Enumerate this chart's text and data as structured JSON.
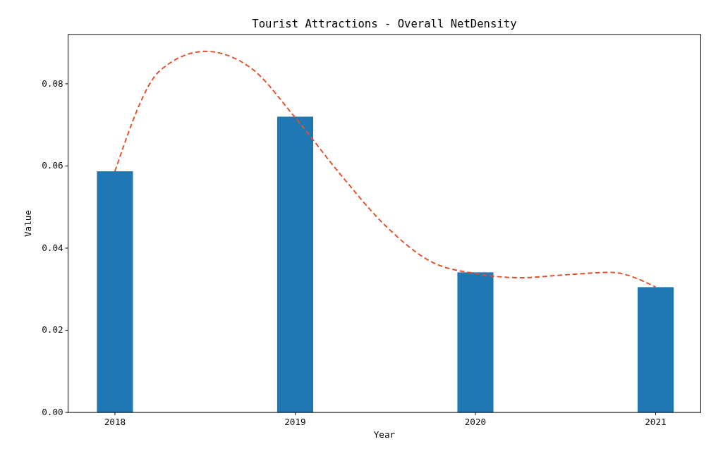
{
  "chart_data": {
    "type": "bar",
    "title": "Tourist Attractions - Overall NetDensity",
    "xlabel": "Year",
    "ylabel": "Value",
    "xlim": [
      2017.74,
      2021.25
    ],
    "xticks": [
      2018,
      2019,
      2020,
      2021
    ],
    "ylim": [
      0,
      0.092
    ],
    "yticks": [
      {
        "value": 0,
        "label": "0.00"
      },
      {
        "value": 0.02,
        "label": "0.02"
      },
      {
        "value": 0.04,
        "label": "0.04"
      },
      {
        "value": 0.06,
        "label": "0.06"
      },
      {
        "value": 0.08,
        "label": "0.08"
      }
    ],
    "grid": false,
    "series": [
      {
        "color": "#1f77b4",
        "x": [
          2018,
          2019,
          2020,
          2021
        ],
        "values": [
          0.0587,
          0.072,
          0.0341,
          0.0305
        ]
      },
      {
        "type": "line",
        "color": "#e4502a",
        "line_style": "dashed",
        "marker": "none",
        "x": [
          2018,
          2018.25,
          2018.5,
          2018.75,
          2019,
          2019.25,
          2019.5,
          2019.75,
          2020,
          2020.25,
          2020.5,
          2020.75,
          2021
        ],
        "values": [
          0.0587,
          0.0832,
          0.0879,
          0.084,
          0.0718,
          0.058,
          0.0455,
          0.0368,
          0.0338,
          0.0328,
          0.0335,
          0.0341,
          0.0305
        ]
      }
    ]
  }
}
